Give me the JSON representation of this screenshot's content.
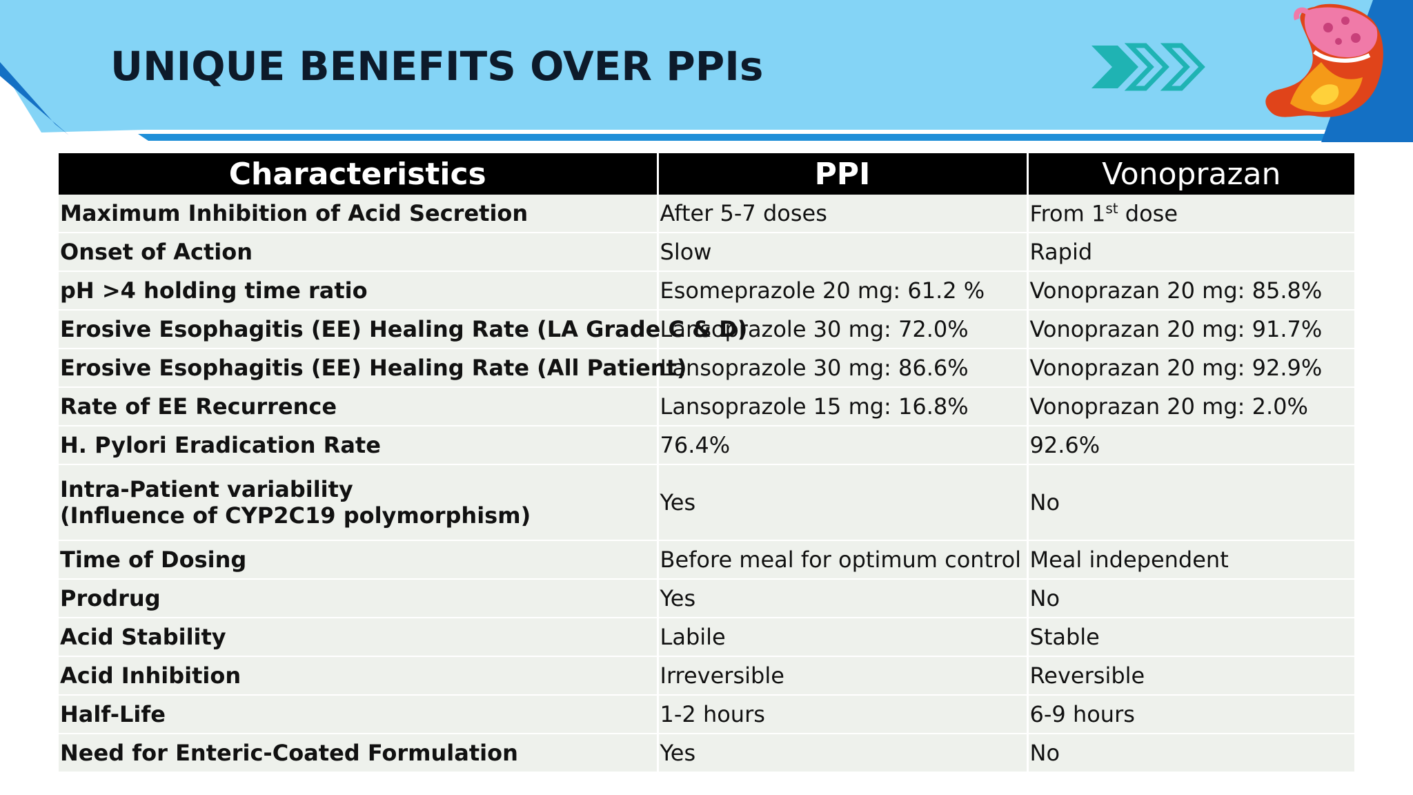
{
  "slide": {
    "title": "UNIQUE BENEFITS OVER PPIs"
  },
  "table": {
    "headers": [
      "Characteristics",
      "PPI",
      "Vonoprazan"
    ],
    "rows": [
      {
        "characteristic": "Maximum Inhibition of Acid Secretion",
        "ppi": "After 5-7 doses",
        "vonoprazan_pre": "From 1",
        "vonoprazan_sup": "st",
        "vonoprazan_post": " dose"
      },
      {
        "characteristic": "Onset of Action",
        "ppi": "Slow",
        "vonoprazan": "Rapid"
      },
      {
        "characteristic": "pH >4 holding time ratio",
        "ppi": "Esomeprazole 20 mg: 61.2 %",
        "vonoprazan": "Vonoprazan 20 mg: 85.8%"
      },
      {
        "characteristic": "Erosive Esophagitis (EE) Healing Rate (LA Grade C & D)",
        "ppi": "Lansoprazole 30 mg: 72.0%",
        "vonoprazan": "Vonoprazan 20 mg: 91.7%"
      },
      {
        "characteristic": "Erosive Esophagitis (EE) Healing Rate (All Patient)",
        "ppi": "Lansoprazole 30 mg: 86.6%",
        "vonoprazan": "Vonoprazan 20 mg: 92.9%"
      },
      {
        "characteristic": "Rate of EE Recurrence",
        "ppi": "Lansoprazole 15 mg: 16.8%",
        "vonoprazan": "Vonoprazan 20 mg: 2.0%"
      },
      {
        "characteristic": "H. Pylori Eradication Rate",
        "ppi": "76.4%",
        "vonoprazan": "92.6%"
      },
      {
        "characteristic_line1": "Intra-Patient variability",
        "characteristic_line2": "(Influence of CYP2C19 polymorphism)",
        "ppi": "Yes",
        "vonoprazan": "No"
      },
      {
        "characteristic": "Time of Dosing",
        "ppi": "Before meal for optimum control",
        "vonoprazan": "Meal independent"
      },
      {
        "characteristic": "Prodrug",
        "ppi": "Yes",
        "vonoprazan": "No"
      },
      {
        "characteristic": "Acid Stability",
        "ppi": "Labile",
        "vonoprazan": "Stable"
      },
      {
        "characteristic": "Acid Inhibition",
        "ppi": "Irreversible",
        "vonoprazan": "Reversible"
      },
      {
        "characteristic": "Half-Life",
        "ppi": "1-2 hours",
        "vonoprazan": "6-9 hours"
      },
      {
        "characteristic": "Need for Enteric-Coated Formulation",
        "ppi": "Yes",
        "vonoprazan": "No"
      }
    ]
  },
  "icons": [
    "chevron-arrows-icon",
    "stomach-flame-icon"
  ],
  "colors": {
    "header_band": "#84d4f6",
    "accent_blue": "#1470c4",
    "chevron": "#1fb3b3",
    "table_header_bg": "#000000",
    "row_bg": "#eef1ec"
  }
}
